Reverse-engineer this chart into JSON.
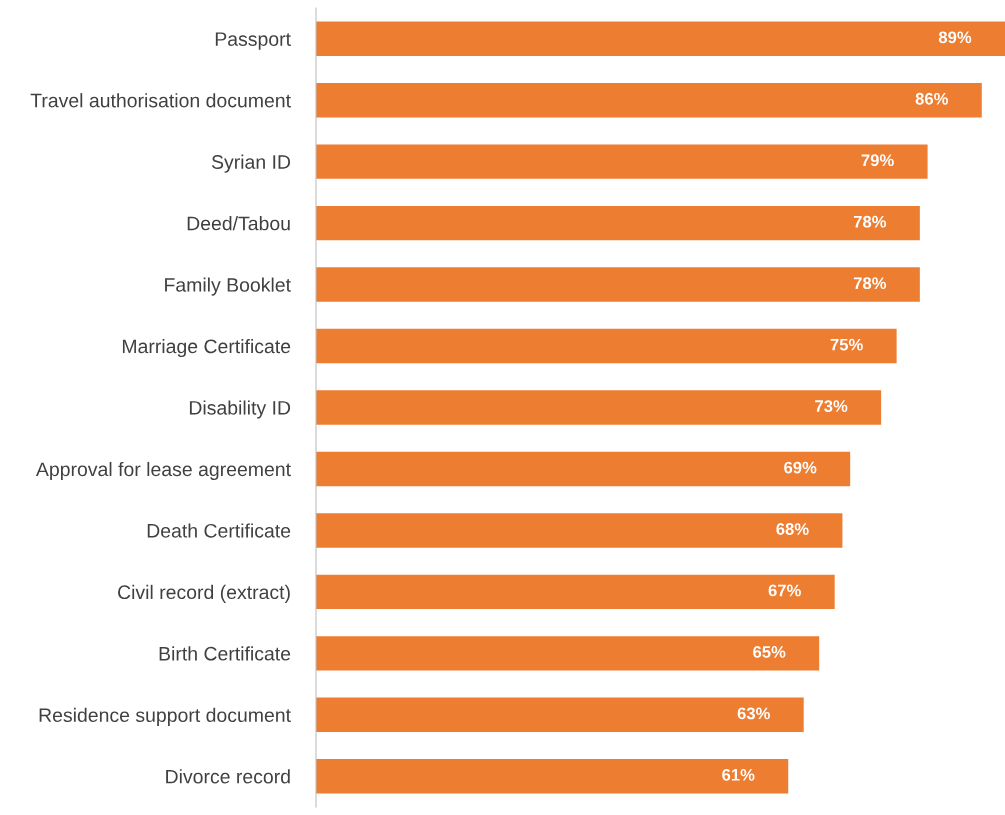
{
  "chart_data": {
    "type": "bar",
    "orientation": "horizontal",
    "categories": [
      "Passport",
      "Travel authorisation document",
      "Syrian ID",
      "Deed/Tabou",
      "Family Booklet",
      "Marriage Certificate",
      "Disability ID",
      "Approval for lease agreement",
      "Death Certificate",
      "Civil record (extract)",
      "Birth Certificate",
      "Residence support document",
      "Divorce record"
    ],
    "values": [
      89,
      86,
      79,
      78,
      78,
      75,
      73,
      69,
      68,
      67,
      65,
      63,
      61
    ],
    "value_labels": [
      "89%",
      "86%",
      "79%",
      "78%",
      "78%",
      "75%",
      "73%",
      "69%",
      "68%",
      "67%",
      "65%",
      "63%",
      "61%"
    ],
    "color": "#ed7d31",
    "grid": false,
    "legend": false,
    "tick_labels": "y"
  }
}
